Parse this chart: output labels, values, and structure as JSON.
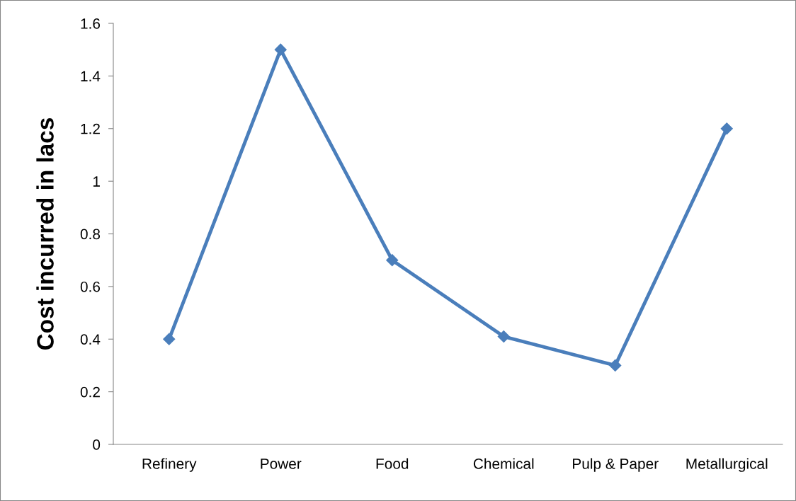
{
  "chart_data": {
    "type": "line",
    "ylabel": "Cost incurred in lacs",
    "categories": [
      "Refinery",
      "Power",
      "Food",
      "Chemical",
      "Pulp & Paper",
      "Metallurgical"
    ],
    "series": [
      {
        "color": "#4a7ebb",
        "values": [
          0.4,
          1.5,
          0.7,
          0.41,
          0.3,
          1.2
        ]
      }
    ],
    "ylim": [
      0,
      1.6
    ],
    "yticks": [
      0,
      0.2,
      0.4,
      0.6,
      0.8,
      1,
      1.2,
      1.4,
      1.6
    ],
    "marker": "diamond",
    "line_style": "solid"
  }
}
